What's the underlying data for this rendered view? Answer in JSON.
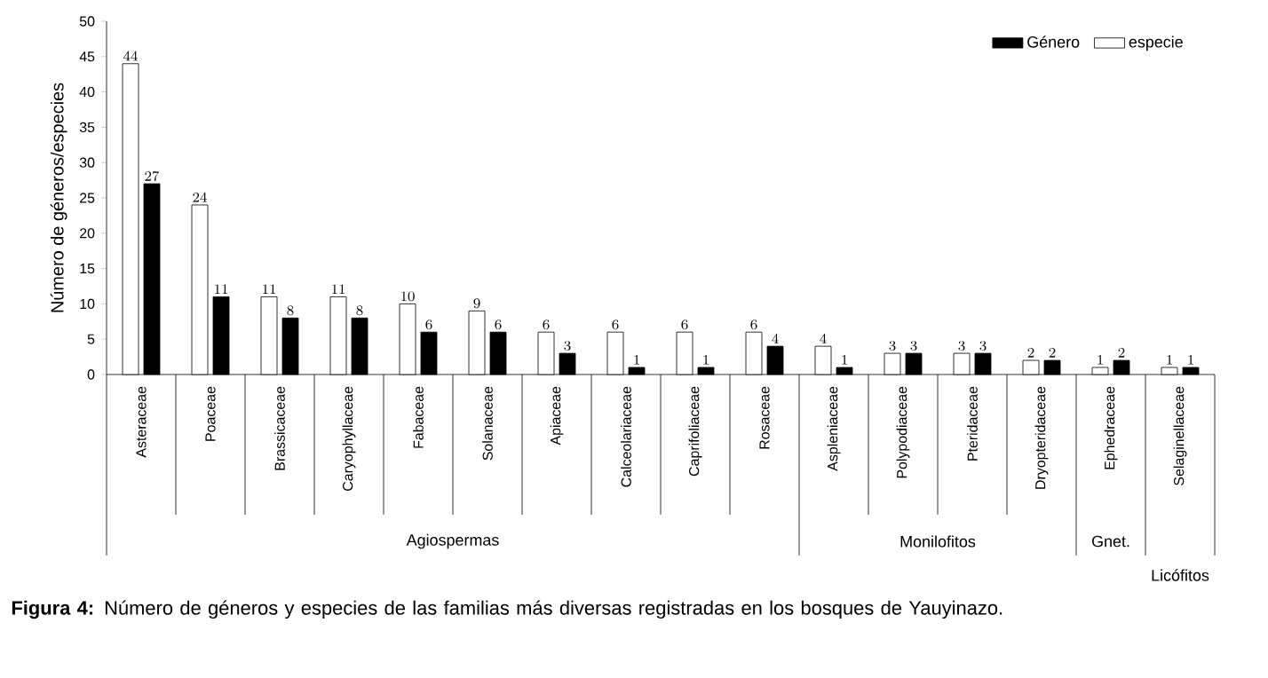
{
  "chart_data": {
    "type": "bar",
    "ylabel": "Número de géneros/especies",
    "categories": [
      "Asteraceae",
      "Poaceae",
      "Brassicaceae",
      "Caryophyllaceae",
      "Fabaceae",
      "Solanaceae",
      "Apiaceae",
      "Calceolariaceae",
      "Caprifoliaceae",
      "Rosaceae",
      "Aspleniaceae",
      "Polypodiaceae",
      "Pteridaceae",
      "Dryopteridaceae",
      "Ephedraceae",
      "Selaginellaceae"
    ],
    "series": [
      {
        "name": "especie",
        "color": "#ffffff",
        "values": [
          44,
          24,
          11,
          11,
          10,
          9,
          6,
          6,
          6,
          6,
          4,
          3,
          3,
          2,
          1,
          1
        ]
      },
      {
        "name": "Género",
        "color": "#000000",
        "values": [
          27,
          11,
          8,
          8,
          6,
          6,
          3,
          1,
          1,
          4,
          1,
          3,
          3,
          2,
          2,
          1
        ]
      }
    ],
    "ylim": [
      0,
      50
    ],
    "yticks": [
      0,
      5,
      10,
      15,
      20,
      25,
      30,
      35,
      40,
      45,
      50
    ],
    "data_labels": true,
    "legend": "top right",
    "grid": false,
    "annotations": [
      "Agiospermas",
      "Monilofitos",
      "Gnet.",
      "Licófitos",
      "**Figura 4:** Número de géneros y especies de las familias más diversas registradas en los bosques de Yauyinazo."
    ]
  }
}
